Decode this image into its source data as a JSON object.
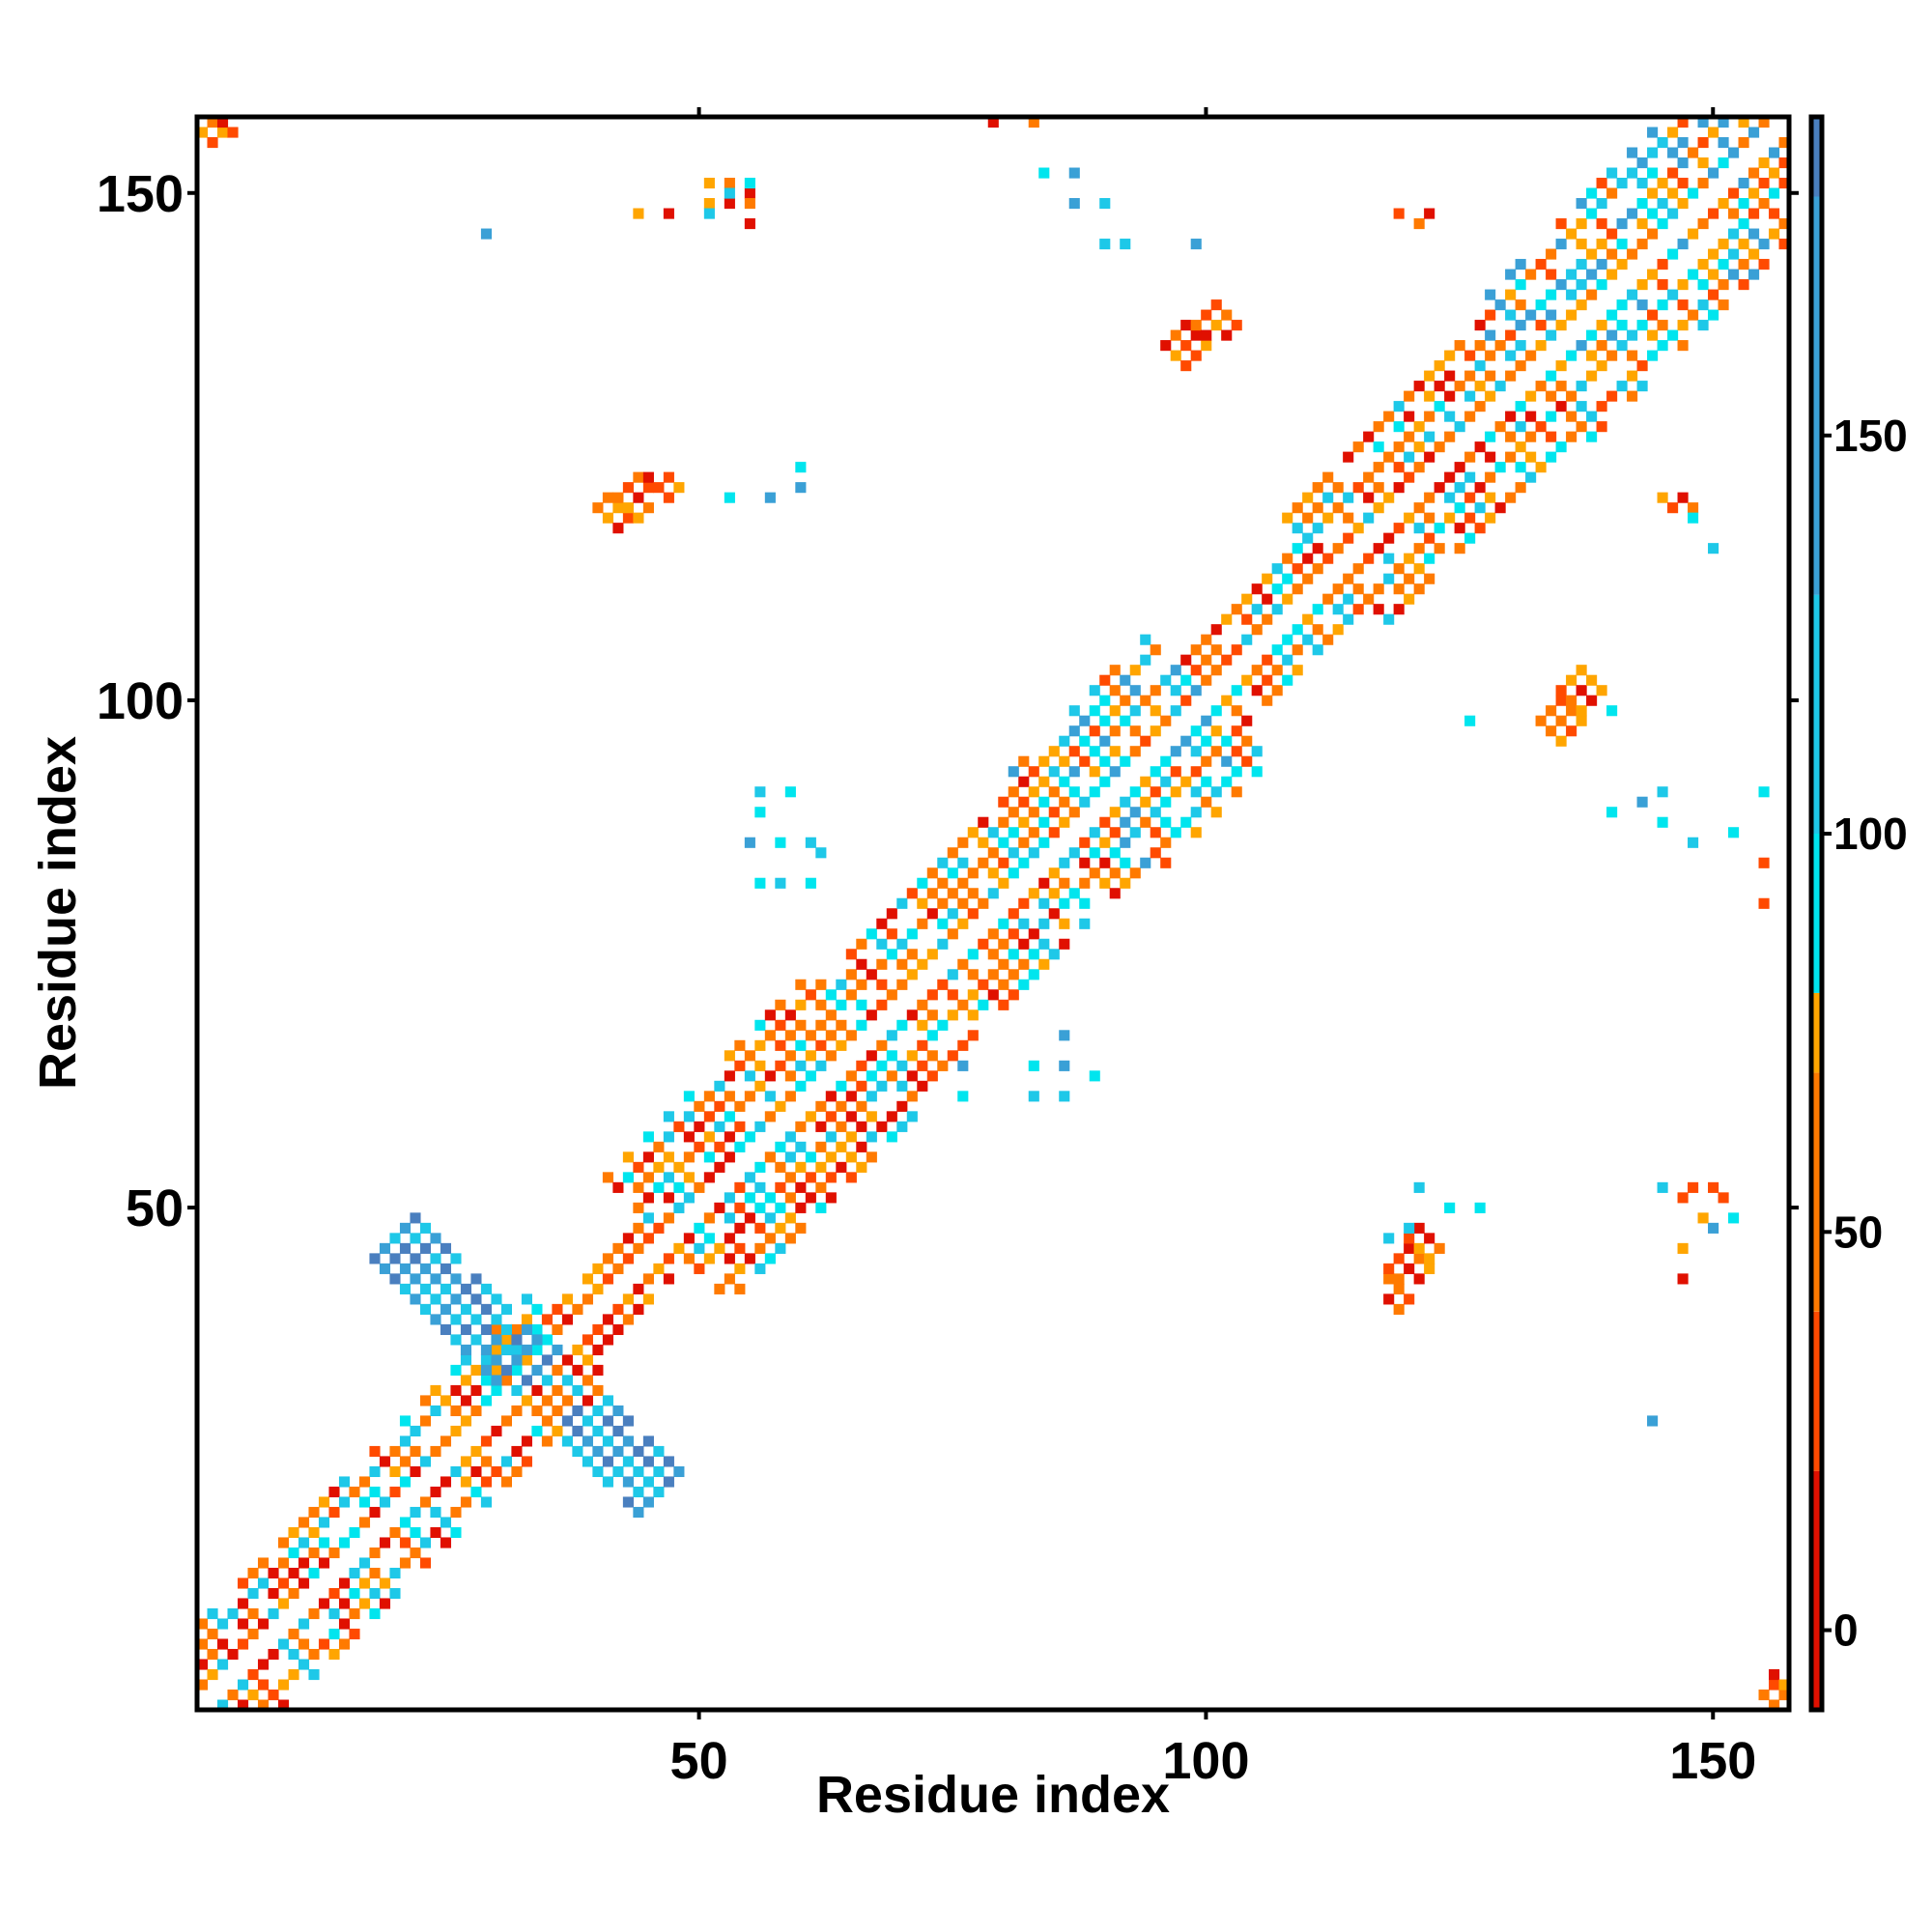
{
  "chart_data": {
    "type": "heatmap",
    "title": "",
    "xlabel": "Residue index",
    "ylabel": "Residue index",
    "xlim": [
      0.5,
      157.5
    ],
    "ylim": [
      0.5,
      157.5
    ],
    "x_ticks": [
      {
        "value": 50,
        "label": "50"
      },
      {
        "value": 100,
        "label": "100"
      },
      {
        "value": 150,
        "label": "150"
      }
    ],
    "y_ticks": [
      {
        "value": 50,
        "label": "50"
      },
      {
        "value": 100,
        "label": "100"
      },
      {
        "value": 150,
        "label": "150"
      }
    ],
    "colorbar": {
      "range": [
        -10,
        190
      ],
      "ticks": [
        {
          "value": 0,
          "label": "0"
        },
        {
          "value": 50,
          "label": "50"
        },
        {
          "value": 100,
          "label": "100"
        },
        {
          "value": 150,
          "label": "150"
        }
      ],
      "bands": [
        {
          "from": -10,
          "to": 20,
          "color": "#e01000"
        },
        {
          "from": 20,
          "to": 40,
          "color": "#ff4a00"
        },
        {
          "from": 40,
          "to": 70,
          "color": "#ff7a00"
        },
        {
          "from": 70,
          "to": 80,
          "color": "#ffa500"
        },
        {
          "from": 80,
          "to": 100,
          "color": "#00e5ee"
        },
        {
          "from": 100,
          "to": 130,
          "color": "#1ec8e8"
        },
        {
          "from": 130,
          "to": 180,
          "color": "#3aa0d6"
        },
        {
          "from": 180,
          "to": 190,
          "color": "#4a7fbf"
        }
      ]
    },
    "grid": false,
    "legend": "right (colorbar)",
    "description_of_data": "Residue-residue contact map; colored cells indicate contacts, colored by angle value; symmetric about the diagonal.",
    "regions": [
      {
        "kind": "band",
        "x1": 1,
        "y1": 1,
        "x2": 37,
        "y2": 37,
        "w": 4,
        "palette": "warm_mixed"
      },
      {
        "kind": "band",
        "x1": 37,
        "y1": 37,
        "x2": 47,
        "y2": 47,
        "w": 2,
        "palette": "warm"
      },
      {
        "kind": "band",
        "x1": 47,
        "y1": 47,
        "x2": 66,
        "y2": 66,
        "w": 6,
        "palette": "warm_mixed"
      },
      {
        "kind": "band",
        "x1": 66,
        "y1": 66,
        "x2": 87,
        "y2": 87,
        "w": 5,
        "palette": "warm_mixed"
      },
      {
        "kind": "band",
        "x1": 87,
        "y1": 87,
        "x2": 100,
        "y2": 100,
        "w": 6,
        "palette": "cool_mixed"
      },
      {
        "kind": "band",
        "x1": 100,
        "y1": 100,
        "x2": 113,
        "y2": 113,
        "w": 3,
        "palette": "warm_mixed"
      },
      {
        "kind": "band",
        "x1": 113,
        "y1": 113,
        "x2": 132,
        "y2": 132,
        "w": 5,
        "palette": "warm_mixed"
      },
      {
        "kind": "band",
        "x1": 132,
        "y1": 132,
        "x2": 157,
        "y2": 157,
        "w": 6,
        "palette": "cool_mixed"
      },
      {
        "kind": "band",
        "x1": 20,
        "y1": 47,
        "x2": 46,
        "y2": 22,
        "w": 2,
        "palette": "blue"
      },
      {
        "kind": "band",
        "x1": 41,
        "y1": 118,
        "x2": 47,
        "y2": 122,
        "w": 1,
        "palette": "warm"
      },
      {
        "kind": "band",
        "x1": 118,
        "y1": 41,
        "x2": 122,
        "y2": 47,
        "w": 1,
        "palette": "warm"
      },
      {
        "kind": "band",
        "x1": 97,
        "y1": 134,
        "x2": 102,
        "y2": 138,
        "w": 1,
        "palette": "warm"
      },
      {
        "kind": "band",
        "x1": 134,
        "y1": 97,
        "x2": 138,
        "y2": 102,
        "w": 1,
        "palette": "warm"
      },
      {
        "kind": "band",
        "x1": 1,
        "y1": 156,
        "x2": 3,
        "y2": 157,
        "w": 1,
        "palette": "warm"
      },
      {
        "kind": "band",
        "x1": 156,
        "y1": 1,
        "x2": 157,
        "y2": 3,
        "w": 1,
        "palette": "warm"
      },
      {
        "kind": "dots",
        "palette": "warm",
        "points": [
          [
            51,
            151
          ],
          [
            53,
            151
          ],
          [
            55,
            150
          ],
          [
            51,
            149
          ],
          [
            53,
            149
          ],
          [
            55,
            149
          ],
          [
            55,
            147
          ],
          [
            44,
            148
          ],
          [
            47,
            148
          ],
          [
            79,
            157
          ],
          [
            83,
            157
          ],
          [
            119,
            148
          ],
          [
            121,
            147
          ],
          [
            122,
            148
          ],
          [
            147,
            51
          ],
          [
            148,
            52
          ],
          [
            150,
            52
          ],
          [
            151,
            51
          ],
          [
            149,
            49
          ],
          [
            147,
            46
          ],
          [
            147,
            43
          ],
          [
            155,
            80
          ],
          [
            155,
            84
          ],
          [
            145,
            120
          ],
          [
            147,
            120
          ],
          [
            146,
            119
          ],
          [
            148,
            119
          ]
        ]
      },
      {
        "kind": "dots",
        "palette": "cool",
        "points": [
          [
            51,
            148
          ],
          [
            53,
            150
          ],
          [
            55,
            151
          ],
          [
            29,
            146
          ],
          [
            84,
            152
          ],
          [
            87,
            152
          ],
          [
            87,
            149
          ],
          [
            90,
            149
          ],
          [
            90,
            145
          ],
          [
            92,
            145
          ],
          [
            99,
            145
          ],
          [
            60,
            123
          ],
          [
            60,
            121
          ],
          [
            57,
            120
          ],
          [
            53,
            120
          ],
          [
            58,
            82
          ],
          [
            61,
            82
          ],
          [
            61,
            86
          ],
          [
            58,
            86
          ],
          [
            55,
            86
          ],
          [
            56,
            89
          ],
          [
            56,
            91
          ],
          [
            59,
            91
          ],
          [
            62,
            85
          ],
          [
            56,
            82
          ],
          [
            76,
            64
          ],
          [
            76,
            61
          ],
          [
            83,
            64
          ],
          [
            83,
            61
          ],
          [
            86,
            64
          ],
          [
            86,
            61
          ],
          [
            89,
            63
          ],
          [
            86,
            67
          ],
          [
            118,
            47
          ],
          [
            120,
            48
          ],
          [
            121,
            52
          ],
          [
            124,
            50
          ],
          [
            127,
            50
          ],
          [
            145,
            52
          ],
          [
            150,
            48
          ],
          [
            151,
            51
          ],
          [
            152,
            49
          ],
          [
            144,
            29
          ],
          [
            140,
            89
          ],
          [
            143,
            90
          ],
          [
            145,
            91
          ],
          [
            148,
            86
          ],
          [
            152,
            87
          ],
          [
            145,
            88
          ],
          [
            155,
            91
          ],
          [
            126,
            98
          ],
          [
            140,
            99
          ],
          [
            150,
            115
          ],
          [
            148,
            118
          ],
          [
            100,
            136
          ]
        ]
      }
    ]
  }
}
